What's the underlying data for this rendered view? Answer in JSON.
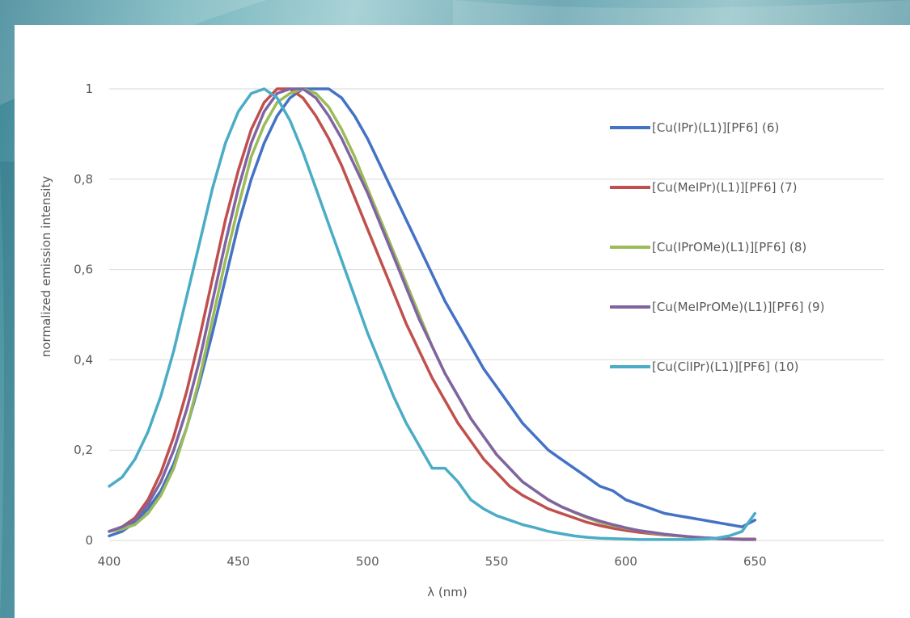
{
  "chart_data": {
    "type": "line",
    "xlabel": "λ (nm)",
    "ylabel": "normalized emission intensity",
    "xlim": [
      400,
      700
    ],
    "ylim": [
      0,
      1
    ],
    "xticks": [
      "400",
      "450",
      "500",
      "550",
      "600",
      "650"
    ],
    "yticks": [
      "0",
      "0,2",
      "0,4",
      "0,6",
      "0,8",
      "1"
    ],
    "grid": "horizontal",
    "legend_placement": "right",
    "series": [
      {
        "name": "[Cu(IPr)(L1)][PF6] (6)",
        "color": "#4472c4",
        "x": [
          400,
          405,
          410,
          415,
          420,
          425,
          430,
          435,
          440,
          445,
          450,
          455,
          460,
          465,
          470,
          475,
          480,
          485,
          490,
          495,
          500,
          505,
          510,
          515,
          520,
          525,
          530,
          535,
          540,
          545,
          550,
          555,
          560,
          565,
          570,
          575,
          580,
          585,
          590,
          595,
          600,
          605,
          610,
          615,
          620,
          625,
          630,
          635,
          640,
          645,
          650
        ],
        "y": [
          0.01,
          0.02,
          0.04,
          0.07,
          0.11,
          0.17,
          0.25,
          0.35,
          0.46,
          0.58,
          0.7,
          0.8,
          0.88,
          0.94,
          0.98,
          1.0,
          1.0,
          1.0,
          0.98,
          0.94,
          0.89,
          0.83,
          0.77,
          0.71,
          0.65,
          0.59,
          0.53,
          0.48,
          0.43,
          0.38,
          0.34,
          0.3,
          0.26,
          0.23,
          0.2,
          0.18,
          0.16,
          0.14,
          0.12,
          0.11,
          0.09,
          0.08,
          0.07,
          0.06,
          0.055,
          0.05,
          0.045,
          0.04,
          0.035,
          0.03,
          0.045
        ]
      },
      {
        "name": "[Cu(MeIPr)(L1)][PF6] (7)",
        "color": "#c0504d",
        "x": [
          400,
          405,
          410,
          415,
          420,
          425,
          430,
          435,
          440,
          445,
          450,
          455,
          460,
          465,
          470,
          475,
          480,
          485,
          490,
          495,
          500,
          505,
          510,
          515,
          520,
          525,
          530,
          535,
          540,
          545,
          550,
          555,
          560,
          565,
          570,
          575,
          580,
          585,
          590,
          595,
          600,
          605,
          610,
          615,
          620,
          625,
          630,
          635,
          640,
          645,
          650
        ],
        "y": [
          0.02,
          0.03,
          0.05,
          0.09,
          0.15,
          0.23,
          0.33,
          0.45,
          0.58,
          0.71,
          0.82,
          0.91,
          0.97,
          1.0,
          1.0,
          0.98,
          0.94,
          0.89,
          0.83,
          0.76,
          0.69,
          0.62,
          0.55,
          0.48,
          0.42,
          0.36,
          0.31,
          0.26,
          0.22,
          0.18,
          0.15,
          0.12,
          0.1,
          0.085,
          0.07,
          0.06,
          0.05,
          0.04,
          0.033,
          0.027,
          0.022,
          0.018,
          0.015,
          0.012,
          0.01,
          0.008,
          0.006,
          0.005,
          0.004,
          0.003,
          0.003
        ]
      },
      {
        "name": "[Cu(IPrOMe)(L1)][PF6] (8)",
        "color": "#9bbb59",
        "x": [
          400,
          405,
          410,
          415,
          420,
          425,
          430,
          435,
          440,
          445,
          450,
          455,
          460,
          465,
          470,
          475,
          480,
          485,
          490,
          495,
          500,
          505,
          510,
          515,
          520,
          525,
          530,
          535,
          540,
          545,
          550,
          555,
          560,
          565,
          570,
          575,
          580,
          585,
          590,
          595,
          600,
          605,
          610,
          615,
          620,
          625,
          630,
          635,
          640,
          645,
          650
        ],
        "y": [
          0.02,
          0.025,
          0.035,
          0.06,
          0.1,
          0.16,
          0.25,
          0.36,
          0.49,
          0.62,
          0.74,
          0.85,
          0.92,
          0.97,
          0.99,
          1.0,
          0.99,
          0.96,
          0.91,
          0.85,
          0.78,
          0.71,
          0.64,
          0.57,
          0.5,
          0.43,
          0.37,
          0.32,
          0.27,
          0.23,
          0.19,
          0.16,
          0.13,
          0.11,
          0.09,
          0.075,
          0.062,
          0.05,
          0.04,
          0.033,
          0.027,
          0.022,
          0.017,
          0.013,
          0.01,
          0.008,
          0.006,
          0.004,
          0.003,
          0.002,
          0.002
        ]
      },
      {
        "name": "[Cu(MeIPrOMe)(L1)][PF6] (9)",
        "color": "#8064a2",
        "x": [
          400,
          405,
          410,
          415,
          420,
          425,
          430,
          435,
          440,
          445,
          450,
          455,
          460,
          465,
          470,
          475,
          480,
          485,
          490,
          495,
          500,
          505,
          510,
          515,
          520,
          525,
          530,
          535,
          540,
          545,
          550,
          555,
          560,
          565,
          570,
          575,
          580,
          585,
          590,
          595,
          600,
          605,
          610,
          615,
          620,
          625,
          630,
          635,
          640,
          645,
          650
        ],
        "y": [
          0.02,
          0.03,
          0.045,
          0.08,
          0.13,
          0.2,
          0.29,
          0.4,
          0.53,
          0.66,
          0.78,
          0.88,
          0.95,
          0.99,
          1.0,
          1.0,
          0.98,
          0.94,
          0.89,
          0.83,
          0.77,
          0.7,
          0.63,
          0.56,
          0.49,
          0.43,
          0.37,
          0.32,
          0.27,
          0.23,
          0.19,
          0.16,
          0.13,
          0.11,
          0.09,
          0.075,
          0.063,
          0.052,
          0.043,
          0.035,
          0.028,
          0.022,
          0.018,
          0.014,
          0.011,
          0.008,
          0.006,
          0.004,
          0.003,
          0.002,
          0.002
        ]
      },
      {
        "name": "[Cu(ClIPr)(L1)][PF6] (10)",
        "color": "#4bacc6",
        "x": [
          400,
          405,
          410,
          415,
          420,
          425,
          430,
          435,
          440,
          445,
          450,
          455,
          460,
          465,
          470,
          475,
          480,
          485,
          490,
          495,
          500,
          505,
          510,
          515,
          520,
          525,
          530,
          535,
          540,
          545,
          550,
          555,
          560,
          565,
          570,
          575,
          580,
          585,
          590,
          595,
          600,
          605,
          610,
          615,
          620,
          625,
          630,
          635,
          640,
          645,
          650
        ],
        "y": [
          0.12,
          0.14,
          0.18,
          0.24,
          0.32,
          0.42,
          0.54,
          0.66,
          0.78,
          0.88,
          0.95,
          0.99,
          1.0,
          0.98,
          0.93,
          0.86,
          0.78,
          0.7,
          0.62,
          0.54,
          0.46,
          0.39,
          0.32,
          0.26,
          0.21,
          0.16,
          0.16,
          0.13,
          0.09,
          0.07,
          0.055,
          0.045,
          0.035,
          0.028,
          0.02,
          0.015,
          0.01,
          0.007,
          0.005,
          0.004,
          0.003,
          0.002,
          0.002,
          0.002,
          0.002,
          0.002,
          0.003,
          0.005,
          0.01,
          0.02,
          0.06
        ]
      }
    ]
  }
}
